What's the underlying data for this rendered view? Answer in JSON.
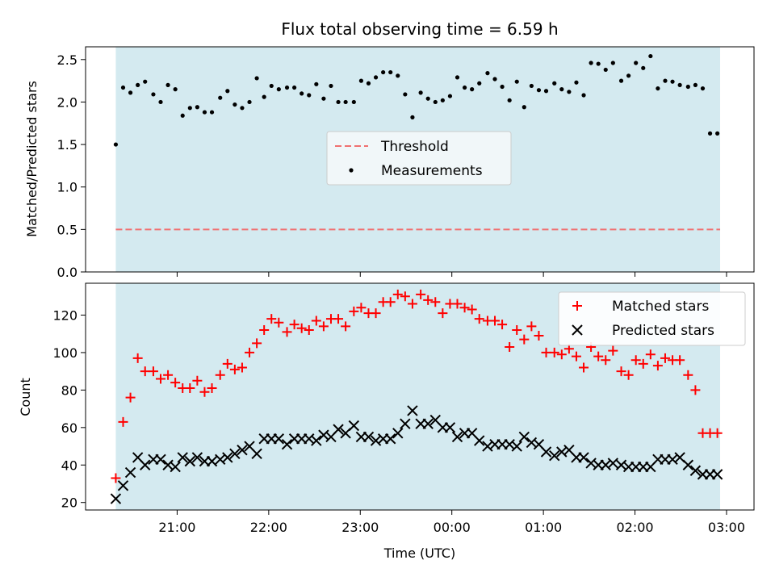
{
  "chart_data": {
    "type": "scatter",
    "title": "Flux total observing time = 6.59 h",
    "xlabel": "Time (UTC)",
    "x_unit": "hours",
    "x_ticks": [
      {
        "value": 21,
        "label": "21:00"
      },
      {
        "value": 22,
        "label": "22:00"
      },
      {
        "value": 23,
        "label": "23:00"
      },
      {
        "value": 24,
        "label": "00:00"
      },
      {
        "value": 25,
        "label": "01:00"
      },
      {
        "value": 26,
        "label": "02:00"
      },
      {
        "value": 27,
        "label": "03:00"
      }
    ],
    "xlim": [
      20.0,
      27.3
    ],
    "shaded_span": {
      "from": 20.33,
      "to": 26.93,
      "color": "#d4eaf0"
    },
    "times": [
      20.33,
      20.41,
      20.49,
      20.57,
      20.65,
      20.74,
      20.82,
      20.9,
      20.98,
      21.06,
      21.14,
      21.22,
      21.3,
      21.38,
      21.47,
      21.55,
      21.63,
      21.71,
      21.79,
      21.87,
      21.95,
      22.03,
      22.11,
      22.2,
      22.28,
      22.36,
      22.44,
      22.52,
      22.6,
      22.68,
      22.76,
      22.84,
      22.93,
      23.01,
      23.09,
      23.17,
      23.25,
      23.33,
      23.41,
      23.49,
      23.57,
      23.66,
      23.74,
      23.82,
      23.9,
      23.98,
      24.06,
      24.14,
      24.22,
      24.3,
      24.39,
      24.47,
      24.55,
      24.63,
      24.71,
      24.79,
      24.87,
      24.95,
      25.03,
      25.12,
      25.2,
      25.28,
      25.36,
      25.44,
      25.52,
      25.6,
      25.68,
      25.76,
      25.85,
      25.93,
      26.01,
      26.09,
      26.17,
      26.25,
      26.33,
      26.41,
      26.49,
      26.58,
      26.66,
      26.74,
      26.82,
      26.9
    ],
    "top_panel": {
      "ylabel": "Matched/Predicted stars",
      "ylim": [
        0.0,
        2.65
      ],
      "yticks": [
        0.0,
        0.5,
        1.0,
        1.5,
        2.0,
        2.5
      ],
      "ytick_labels": [
        "0.0",
        "0.5",
        "1.0",
        "1.5",
        "2.0",
        "2.5"
      ],
      "threshold": {
        "name": "Threshold",
        "value": 0.5,
        "color": "#f07070"
      },
      "measurements": {
        "name": "Measurements",
        "color": "#000000",
        "values": [
          1.5,
          2.17,
          2.11,
          2.2,
          2.24,
          2.09,
          2.0,
          2.2,
          2.15,
          1.84,
          1.93,
          1.94,
          1.88,
          1.88,
          2.05,
          2.13,
          1.97,
          1.93,
          2.0,
          2.28,
          2.06,
          2.19,
          2.15,
          2.17,
          2.17,
          2.1,
          2.08,
          2.21,
          2.04,
          2.19,
          2.0,
          2.0,
          2.0,
          2.25,
          2.22,
          2.29,
          2.35,
          2.35,
          2.31,
          2.09,
          1.82,
          2.11,
          2.04,
          2.0,
          2.02,
          2.07,
          2.29,
          2.17,
          2.15,
          2.22,
          2.34,
          2.27,
          2.18,
          2.02,
          2.24,
          1.94,
          2.19,
          2.14,
          2.13,
          2.22,
          2.15,
          2.12,
          2.23,
          2.08,
          2.46,
          2.45,
          2.38,
          2.46,
          2.25,
          2.31,
          2.46,
          2.4,
          2.54,
          2.16,
          2.25,
          2.24,
          2.2,
          2.18,
          2.2,
          2.16,
          1.63,
          1.63
        ]
      },
      "legend_position": "center"
    },
    "bottom_panel": {
      "ylabel": "Count",
      "ylim": [
        16,
        137
      ],
      "yticks": [
        20,
        40,
        60,
        80,
        100,
        120
      ],
      "ytick_labels": [
        "20",
        "40",
        "60",
        "80",
        "100",
        "120"
      ],
      "legend_position": "upper-right",
      "series": [
        {
          "name": "Matched stars",
          "marker": "plus",
          "color": "#ff0000",
          "values": [
            33,
            63,
            76,
            97,
            90,
            90,
            86,
            88,
            84,
            81,
            81,
            85,
            79,
            81,
            88,
            94,
            91,
            92,
            100,
            105,
            112,
            118,
            116,
            111,
            115,
            113,
            112,
            117,
            114,
            118,
            118,
            114,
            122,
            124,
            121,
            121,
            127,
            127,
            131,
            130,
            126,
            131,
            128,
            127,
            121,
            126,
            126,
            124,
            123,
            118,
            117,
            117,
            115,
            103,
            112,
            107,
            114,
            109,
            100,
            100,
            99,
            102,
            98,
            92,
            103,
            98,
            96,
            101,
            90,
            88,
            96,
            94,
            99,
            93,
            97,
            96,
            96,
            88,
            80,
            57,
            57,
            57
          ]
        },
        {
          "name": "Predicted stars",
          "marker": "x",
          "color": "#000000",
          "values": [
            22,
            29,
            36,
            44,
            40,
            43,
            43,
            40,
            39,
            44,
            42,
            44,
            42,
            42,
            43,
            44,
            46,
            48,
            50,
            46,
            54,
            54,
            54,
            51,
            54,
            54,
            54,
            53,
            56,
            55,
            59,
            57,
            61,
            55,
            55,
            53,
            54,
            54,
            57,
            62,
            69,
            62,
            62,
            64,
            60,
            60,
            55,
            57,
            57,
            53,
            50,
            51,
            51,
            51,
            50,
            55,
            52,
            51,
            47,
            45,
            47,
            48,
            44,
            44,
            41,
            40,
            40,
            41,
            40,
            39,
            39,
            39,
            39,
            43,
            43,
            43,
            44,
            40,
            37,
            35,
            35,
            35
          ]
        }
      ]
    }
  }
}
